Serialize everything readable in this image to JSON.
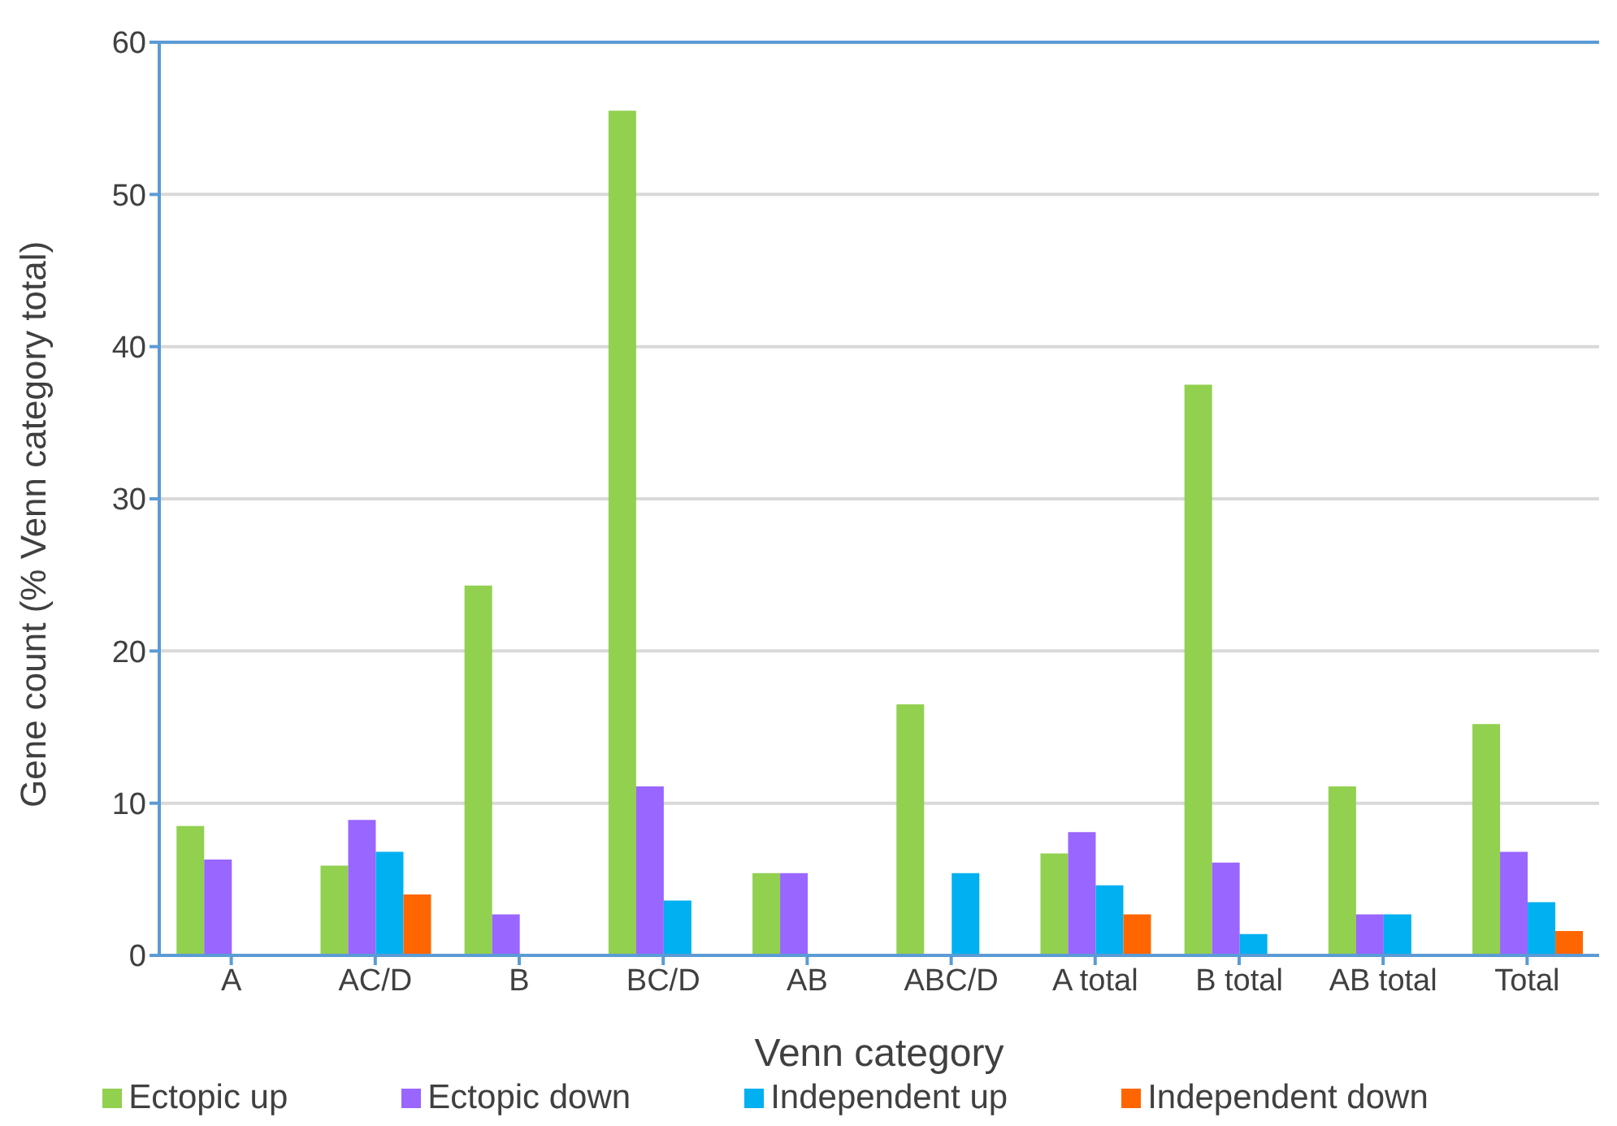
{
  "chart_data": {
    "type": "bar",
    "xlabel": "Venn category",
    "ylabel": "Gene count (% Venn category total)",
    "categories": [
      "A",
      "AC/D",
      "B",
      "BC/D",
      "AB",
      "ABC/D",
      "A total",
      "B total",
      "AB total",
      "Total"
    ],
    "series": [
      {
        "name": "Ectopic up",
        "color": "#92d050",
        "values": [
          8.5,
          5.9,
          24.3,
          55.5,
          5.4,
          16.5,
          6.7,
          37.5,
          11.1,
          15.2
        ]
      },
      {
        "name": "Ectopic down",
        "color": "#9966ff",
        "values": [
          6.3,
          8.9,
          2.7,
          11.1,
          5.4,
          null,
          8.1,
          6.1,
          2.7,
          6.8
        ]
      },
      {
        "name": "Independent up",
        "color": "#00b0f0",
        "values": [
          null,
          6.8,
          null,
          3.6,
          null,
          5.4,
          4.6,
          1.4,
          2.7,
          3.5
        ]
      },
      {
        "name": "Independent down",
        "color": "#ff6600",
        "values": [
          null,
          4.0,
          null,
          null,
          null,
          null,
          2.7,
          null,
          null,
          1.6
        ]
      }
    ],
    "ylim": [
      0,
      60
    ],
    "yticks": [
      0,
      10,
      20,
      30,
      40,
      50,
      60
    ],
    "grid": "y",
    "legend": "bottom"
  }
}
